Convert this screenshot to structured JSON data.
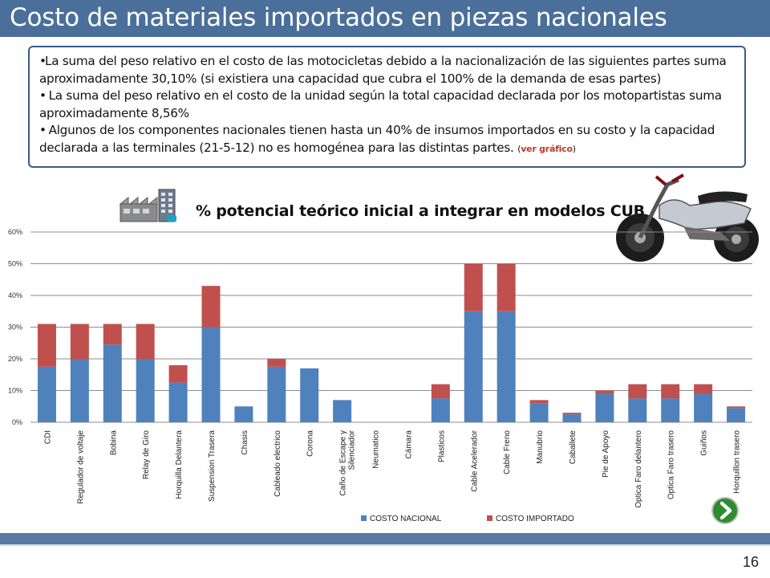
{
  "slide": {
    "title": "Costo de materiales importados en piezas nacionales",
    "page_number": "16"
  },
  "info": {
    "bullets": [
      "La suma del peso relativo en el costo de las motocicletas debido a la  nacionalización de las siguientes partes suma aproximadamente 30,10% (si existiera una capacidad que cubra el 100% de la demanda de esas partes)",
      "La suma del peso relativo en el costo de la unidad según la total capacidad declarada por los motopartistas suma aproximadamente 8,56%",
      "Algunos de los componentes nacionales tienen hasta un 40% de insumos importados en su costo y la capacidad declarada a las terminales (21-5-12) no es homogénea para las distintas partes."
    ],
    "link_open": "(",
    "link_label": "ver gráfico",
    "link_close": ")"
  },
  "icons": [
    "factory-icon",
    "motorcycle-image",
    "next-arrow-icon"
  ],
  "chart_data": {
    "type": "bar",
    "stacked": true,
    "title": "% potencial teórico inicial a integrar en modelos CUB",
    "categories": [
      "CDI",
      "Regulador de voltaje",
      "Bobina",
      "Relay de Giro",
      "Horquilla Delantera",
      "Suspension Trasera",
      "Chasis",
      "Cableado electrico",
      "Corona",
      "Caño de Escape y Silenciador",
      "Neumatico",
      "Cámara",
      "Plasticos",
      "Cable Acelerador",
      "Cable Freno",
      "Manubrio",
      "Caballete",
      "Pie de Apoyo",
      "Optica Faro delantero",
      "Optica Faro trasero",
      "Guiños",
      "Horquillon trasero"
    ],
    "series": [
      {
        "name": "COSTO NACIONAL",
        "color": "#4f81bd",
        "values": [
          17.5,
          20,
          24.5,
          20,
          12.5,
          30,
          5,
          17.5,
          17,
          7,
          0,
          0,
          7.5,
          35,
          35,
          6,
          2.5,
          9,
          7.5,
          7.5,
          9,
          4.5
        ]
      },
      {
        "name": "COSTO IMPORTADO",
        "color": "#c0504d",
        "values": [
          13.5,
          11,
          6.5,
          11,
          5.5,
          13,
          0,
          2.5,
          0,
          0,
          0,
          0,
          4.5,
          15,
          15,
          1,
          0.5,
          1,
          4.5,
          4.5,
          3,
          0.5
        ]
      }
    ],
    "ylim": [
      0,
      60
    ],
    "yticks": [
      "0%",
      "10%",
      "20%",
      "30%",
      "40%",
      "50%",
      "60%"
    ],
    "grid": true,
    "legend": "bottom"
  }
}
